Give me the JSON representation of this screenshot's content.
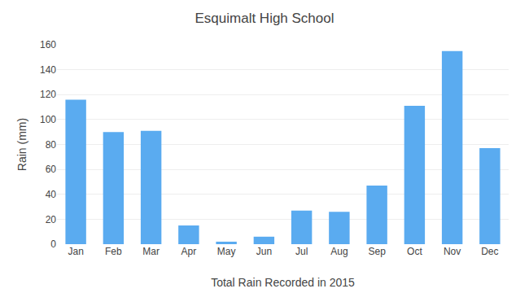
{
  "chart_data": {
    "type": "bar",
    "title": "Esquimalt High School",
    "xlabel": "Total Rain Recorded in 2015",
    "ylabel": "Rain (mm)",
    "categories": [
      "Jan",
      "Feb",
      "Mar",
      "Apr",
      "May",
      "Jun",
      "Jul",
      "Aug",
      "Sep",
      "Oct",
      "Nov",
      "Dec"
    ],
    "values": [
      116,
      90,
      91,
      15,
      2,
      6,
      27,
      26,
      47,
      111,
      155,
      77
    ],
    "color": "#5aabf0",
    "ylim": [
      0,
      160
    ],
    "yticks": [
      0,
      20,
      40,
      60,
      80,
      100,
      120,
      140,
      160
    ],
    "grid": true
  }
}
